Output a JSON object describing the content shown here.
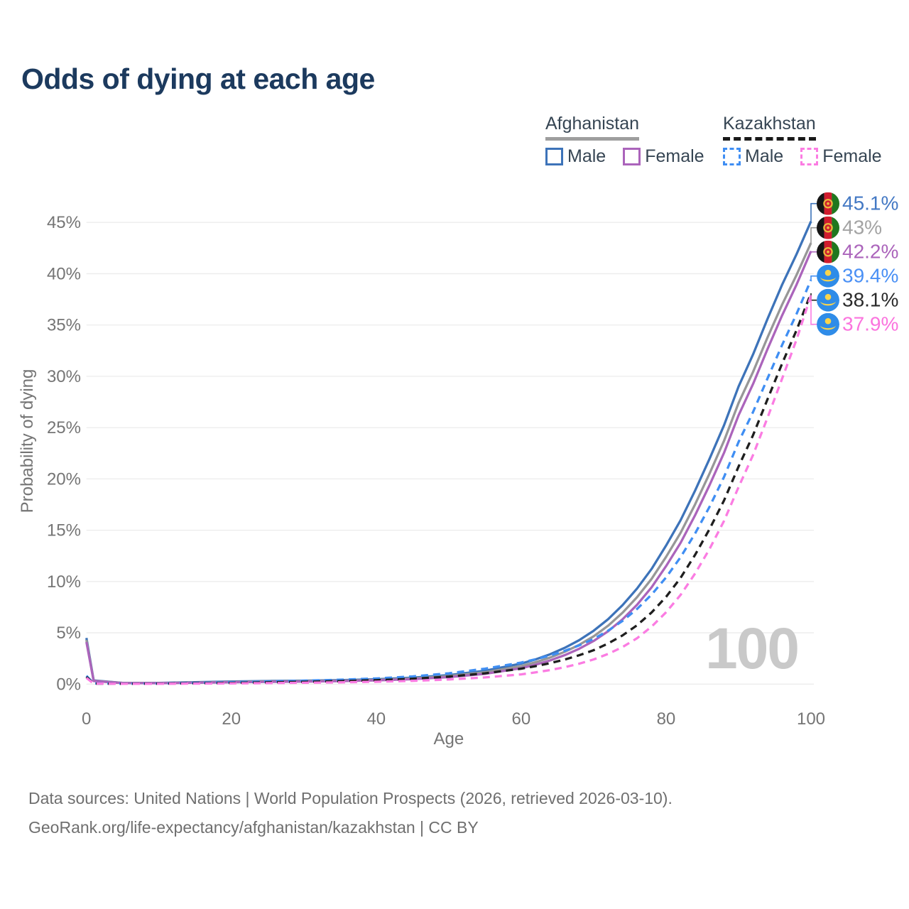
{
  "title": "Odds of dying at each age",
  "legend": {
    "groups": [
      {
        "name": "Afghanistan",
        "underline_style": "solid",
        "underline_color": "#9e9e9e",
        "items": [
          {
            "label": "Male",
            "color": "#3d73b9",
            "dashed": false
          },
          {
            "label": "Female",
            "color": "#ab64bb",
            "dashed": false
          }
        ]
      },
      {
        "name": "Kazakhstan",
        "underline_style": "dashed",
        "underline_color": "#1a1a1a",
        "items": [
          {
            "label": "Male",
            "color": "#3f8ef3",
            "dashed": true
          },
          {
            "label": "Female",
            "color": "#fb7ce2",
            "dashed": true
          }
        ]
      }
    ]
  },
  "chart_data": {
    "type": "line",
    "title": "Odds of dying at each age",
    "xlabel": "Age",
    "ylabel": "Probability of dying",
    "xlim": [
      0,
      100
    ],
    "ylim": [
      0,
      47
    ],
    "x_ticks": [
      0,
      20,
      40,
      60,
      80,
      100
    ],
    "y_ticks_percent": [
      0,
      5,
      10,
      15,
      20,
      25,
      30,
      35,
      40,
      45
    ],
    "grid": "horizontal",
    "legend_position": "top-right",
    "watermark": "100",
    "ages": [
      0,
      1,
      5,
      10,
      15,
      20,
      25,
      30,
      35,
      40,
      45,
      50,
      55,
      60,
      62,
      64,
      66,
      68,
      70,
      72,
      74,
      76,
      78,
      80,
      82,
      84,
      86,
      88,
      90,
      92,
      94,
      96,
      98,
      100
    ],
    "series": [
      {
        "name": "Afghanistan Male",
        "country": "Afghanistan",
        "color": "#3d73b9",
        "label_color": "#4479c4",
        "dashed": false,
        "flag": "af",
        "end_label": "45.1%",
        "end_value": 45.1,
        "values": [
          4.5,
          0.35,
          0.12,
          0.12,
          0.18,
          0.25,
          0.3,
          0.33,
          0.38,
          0.47,
          0.62,
          0.88,
          1.3,
          2.0,
          2.41,
          2.91,
          3.53,
          4.28,
          5.2,
          6.33,
          7.7,
          9.32,
          11.22,
          13.5,
          15.96,
          18.86,
          21.97,
          25.24,
          29.0,
          32.13,
          35.6,
          38.91,
          41.89,
          45.1
        ]
      },
      {
        "name": "Afghanistan",
        "country": "Afghanistan",
        "color": "#979797",
        "label_color": "#a3a3a3",
        "dashed": false,
        "flag": "af",
        "end_label": "43%",
        "end_value": 43,
        "values": [
          4.3,
          0.32,
          0.11,
          0.1,
          0.15,
          0.21,
          0.26,
          0.29,
          0.33,
          0.41,
          0.55,
          0.78,
          1.15,
          1.75,
          2.13,
          2.59,
          3.14,
          3.82,
          4.65,
          5.69,
          6.96,
          8.47,
          10.25,
          12.4,
          14.74,
          17.52,
          20.53,
          23.72,
          27.4,
          30.43,
          33.79,
          36.97,
          39.87,
          43.0
        ]
      },
      {
        "name": "Afghanistan Female",
        "country": "Afghanistan",
        "color": "#ab64bb",
        "label_color": "#ab64bb",
        "dashed": false,
        "flag": "af",
        "end_label": "42.2%",
        "end_value": 42.2,
        "values": [
          4.1,
          0.3,
          0.1,
          0.09,
          0.13,
          0.18,
          0.22,
          0.25,
          0.29,
          0.36,
          0.48,
          0.68,
          1.0,
          1.55,
          1.89,
          2.31,
          2.82,
          3.44,
          4.2,
          5.15,
          6.32,
          7.73,
          9.43,
          11.5,
          13.76,
          16.46,
          19.4,
          22.55,
          26.2,
          29.25,
          32.66,
          35.92,
          38.93,
          42.2
        ]
      },
      {
        "name": "Kazakhstan Male",
        "country": "Kazakhstan",
        "color": "#3f8ef3",
        "label_color": "#4a90f5",
        "dashed": true,
        "flag": "kz",
        "end_label": "39.4%",
        "end_value": 39.4,
        "values": [
          0.8,
          0.06,
          0.04,
          0.05,
          0.12,
          0.18,
          0.25,
          0.33,
          0.42,
          0.55,
          0.75,
          1.05,
          1.5,
          2.1,
          2.42,
          2.79,
          3.24,
          3.77,
          4.4,
          5.21,
          6.16,
          7.32,
          8.72,
          10.4,
          12.36,
          14.68,
          17.29,
          20.2,
          23.6,
          26.52,
          29.8,
          33.03,
          36.07,
          39.4
        ]
      },
      {
        "name": "Kazakhstan",
        "country": "Kazakhstan",
        "color": "#1e1e1e",
        "label_color": "#2b2b2b",
        "dashed": true,
        "flag": "kz",
        "end_label": "38.1%",
        "end_value": 38.1,
        "values": [
          0.7,
          0.05,
          0.03,
          0.04,
          0.08,
          0.12,
          0.17,
          0.22,
          0.29,
          0.38,
          0.52,
          0.73,
          1.05,
          1.5,
          1.75,
          2.04,
          2.39,
          2.81,
          3.3,
          3.96,
          4.75,
          5.74,
          6.98,
          8.5,
          10.35,
          12.6,
          15.12,
          17.91,
          21.2,
          24.26,
          27.77,
          31.22,
          34.49,
          38.1
        ]
      },
      {
        "name": "Kazakhstan Female",
        "country": "Kazakhstan",
        "color": "#fb7ce2",
        "label_color": "#fb74de",
        "dashed": true,
        "flag": "kz",
        "end_label": "37.9%",
        "end_value": 37.9,
        "values": [
          0.6,
          0.05,
          0.03,
          0.03,
          0.05,
          0.07,
          0.1,
          0.13,
          0.17,
          0.23,
          0.32,
          0.45,
          0.65,
          0.95,
          1.14,
          1.37,
          1.65,
          1.99,
          2.4,
          2.94,
          3.61,
          4.47,
          5.6,
          7.0,
          8.69,
          10.78,
          13.18,
          15.91,
          19.2,
          22.33,
          25.97,
          29.75,
          33.57,
          37.9
        ]
      }
    ],
    "flag_colors": {
      "af_black": "#151515",
      "af_red": "#d01c2e",
      "af_green": "#20771f",
      "af_gold": "#e9b63c",
      "kz_blue": "#2f8ce8",
      "kz_gold": "#fbd44b"
    }
  },
  "ui_colors": {
    "title": "#1c3a5e",
    "axis_text": "#757575",
    "gridline": "#ececec",
    "watermark": "#c9c9c9",
    "footer_text": "#6f6f6f"
  },
  "footer": {
    "line1": "Data sources: United Nations | World Population Prospects (2026, retrieved 2026-03-10).",
    "line2": "GeoRank.org/life-expectancy/afghanistan/kazakhstan | CC BY"
  }
}
